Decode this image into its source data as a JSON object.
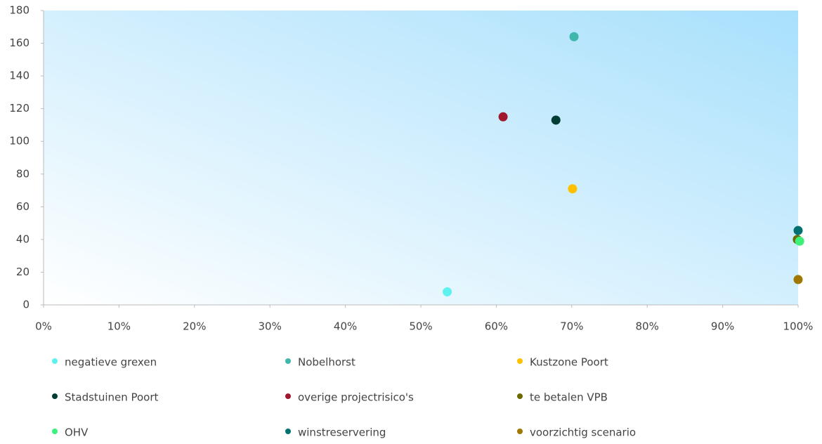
{
  "chart_data": {
    "type": "scatter",
    "xlim": [
      0,
      100
    ],
    "xticks": [
      {
        "value": 0,
        "label": "0%"
      },
      {
        "value": 10,
        "label": "10%"
      },
      {
        "value": 20,
        "label": "20%"
      },
      {
        "value": 30,
        "label": "30%"
      },
      {
        "value": 40,
        "label": "40%"
      },
      {
        "value": 50,
        "label": "50%"
      },
      {
        "value": 60,
        "label": "60%"
      },
      {
        "value": 70,
        "label": "70%"
      },
      {
        "value": 80,
        "label": "80%"
      },
      {
        "value": 90,
        "label": "90%"
      },
      {
        "value": 100,
        "label": "100%"
      }
    ],
    "ylim": [
      0,
      180
    ],
    "yticks": [
      0,
      20,
      40,
      60,
      80,
      100,
      120,
      140,
      160,
      180
    ],
    "series": [
      {
        "name": "negatieve grexen",
        "color": "#5ff0f0",
        "x": [
          53.5
        ],
        "values": [
          8
        ]
      },
      {
        "name": "Nobelhorst",
        "color": "#3fb7aa",
        "x": [
          70.3
        ],
        "values": [
          164
        ]
      },
      {
        "name": "Kustzone Poort",
        "color": "#ffc000",
        "x": [
          70.1
        ],
        "values": [
          71
        ]
      },
      {
        "name": "Stadstuinen Poort",
        "color": "#003d33",
        "x": [
          67.9
        ],
        "values": [
          113
        ]
      },
      {
        "name": "overige projectrisico's",
        "color": "#a0182e",
        "x": [
          60.9
        ],
        "values": [
          115
        ]
      },
      {
        "name": "te betalen VPB",
        "color": "#6b6b00",
        "x": [
          99.9
        ],
        "values": [
          40
        ]
      },
      {
        "name": "OHV",
        "color": "#3cf07a",
        "x": [
          100.2
        ],
        "values": [
          39
        ]
      },
      {
        "name": "winstreservering",
        "color": "#007070",
        "x": [
          100
        ],
        "values": [
          45.5
        ]
      },
      {
        "name": "voorzichtig scenario",
        "color": "#a07800",
        "x": [
          100
        ],
        "values": [
          15.5
        ]
      }
    ]
  }
}
